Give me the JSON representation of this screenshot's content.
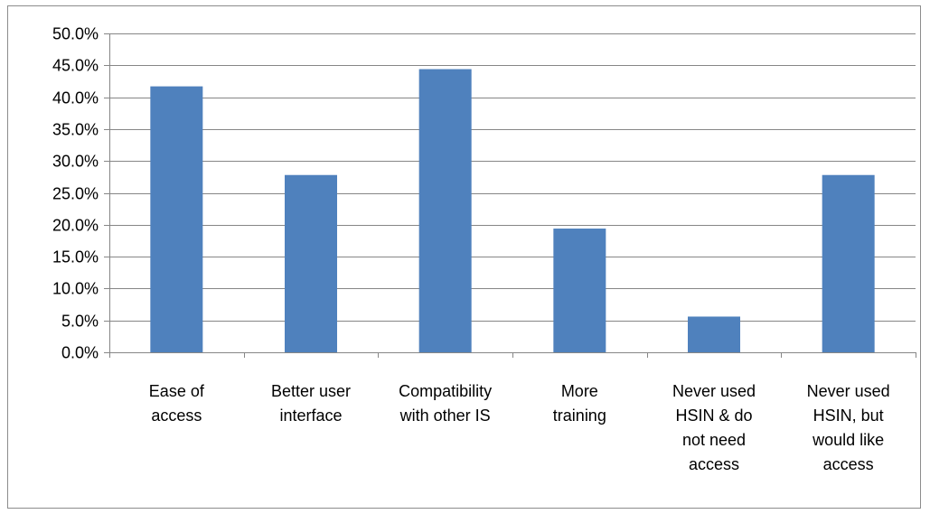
{
  "chart_data": {
    "type": "bar",
    "title": "",
    "xlabel": "",
    "ylabel": "",
    "categories": [
      [
        "Ease of",
        "access"
      ],
      [
        "Better user",
        "interface"
      ],
      [
        "Compatibility",
        "with other IS"
      ],
      [
        "More",
        "training"
      ],
      [
        "Never used",
        "HSIN & do",
        "not need",
        "access"
      ],
      [
        "Never used",
        "HSIN, but",
        "would like",
        "access"
      ]
    ],
    "values": [
      41.7,
      27.8,
      44.4,
      19.4,
      5.6,
      27.8
    ],
    "ylim": [
      0,
      50
    ],
    "yticks": [
      0,
      5,
      10,
      15,
      20,
      25,
      30,
      35,
      40,
      45,
      50
    ],
    "ytick_format": "percent_1dp",
    "grid": true,
    "legend": "none",
    "bar_color": "#4f81bd",
    "grid_color": "#868686",
    "axis_color": "#868686"
  }
}
